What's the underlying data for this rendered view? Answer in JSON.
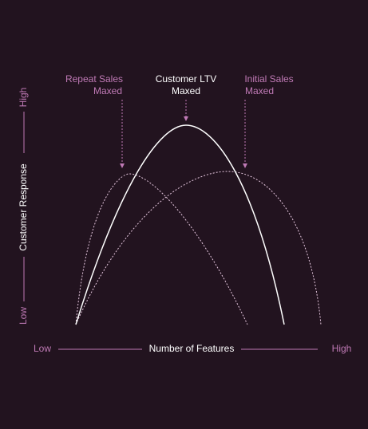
{
  "annotations": [
    {
      "lines": [
        "Repeat Sales",
        "Maxed"
      ]
    },
    {
      "lines": [
        "Customer LTV",
        "Maxed"
      ]
    },
    {
      "lines": [
        "Initial Sales",
        "Maxed"
      ]
    }
  ],
  "y_axis": {
    "label": "Customer Response",
    "low": "Low",
    "high": "High"
  },
  "x_axis": {
    "label": "Number of Features",
    "low": "Low",
    "high": "High"
  }
}
